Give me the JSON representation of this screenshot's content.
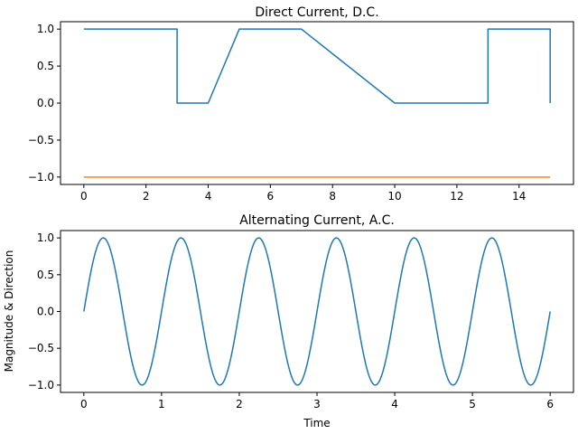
{
  "chart_data": [
    {
      "type": "line",
      "title": "Direct Current, D.C.",
      "xlabel": "",
      "ylabel": "",
      "xlim": [
        -0.75,
        15.75
      ],
      "ylim": [
        -1.1,
        1.1
      ],
      "xticks": [
        0,
        2,
        4,
        6,
        8,
        10,
        12,
        14
      ],
      "xtick_labels": [
        "0",
        "2",
        "4",
        "6",
        "8",
        "10",
        "12",
        "14"
      ],
      "yticks": [
        -1.0,
        -0.5,
        0.0,
        0.5,
        1.0
      ],
      "ytick_labels": [
        "−1.0",
        "−0.5",
        "0.0",
        "0.5",
        "1.0"
      ],
      "grid": false,
      "legend": "none",
      "series": [
        {
          "color": "#1f77b4",
          "x": [
            0,
            3,
            3,
            4,
            5,
            7,
            10,
            13,
            13,
            15,
            15
          ],
          "y": [
            1,
            1,
            0,
            0,
            1,
            1,
            0,
            0,
            1,
            1,
            0
          ]
        },
        {
          "color": "#ff7f0e",
          "x": [
            0,
            15
          ],
          "y": [
            -1,
            -1
          ]
        }
      ]
    },
    {
      "type": "line",
      "title": "Alternating Current, A.C.",
      "xlabel": "Time",
      "ylabel": "Magnitude & Direction",
      "xlim": [
        -0.3,
        6.3
      ],
      "ylim": [
        -1.1,
        1.1
      ],
      "xticks": [
        0,
        1,
        2,
        3,
        4,
        5,
        6
      ],
      "xtick_labels": [
        "0",
        "1",
        "2",
        "3",
        "4",
        "5",
        "6"
      ],
      "yticks": [
        -1.0,
        -0.5,
        0.0,
        0.5,
        1.0
      ],
      "ytick_labels": [
        "−1.0",
        "−0.5",
        "0.0",
        "0.5",
        "1.0"
      ],
      "grid": false,
      "legend": "none",
      "function": "sin(2*pi*t)",
      "frequency": 1,
      "x_range": [
        0,
        6
      ],
      "series": [
        {
          "color": "#1f77b4"
        }
      ]
    }
  ]
}
